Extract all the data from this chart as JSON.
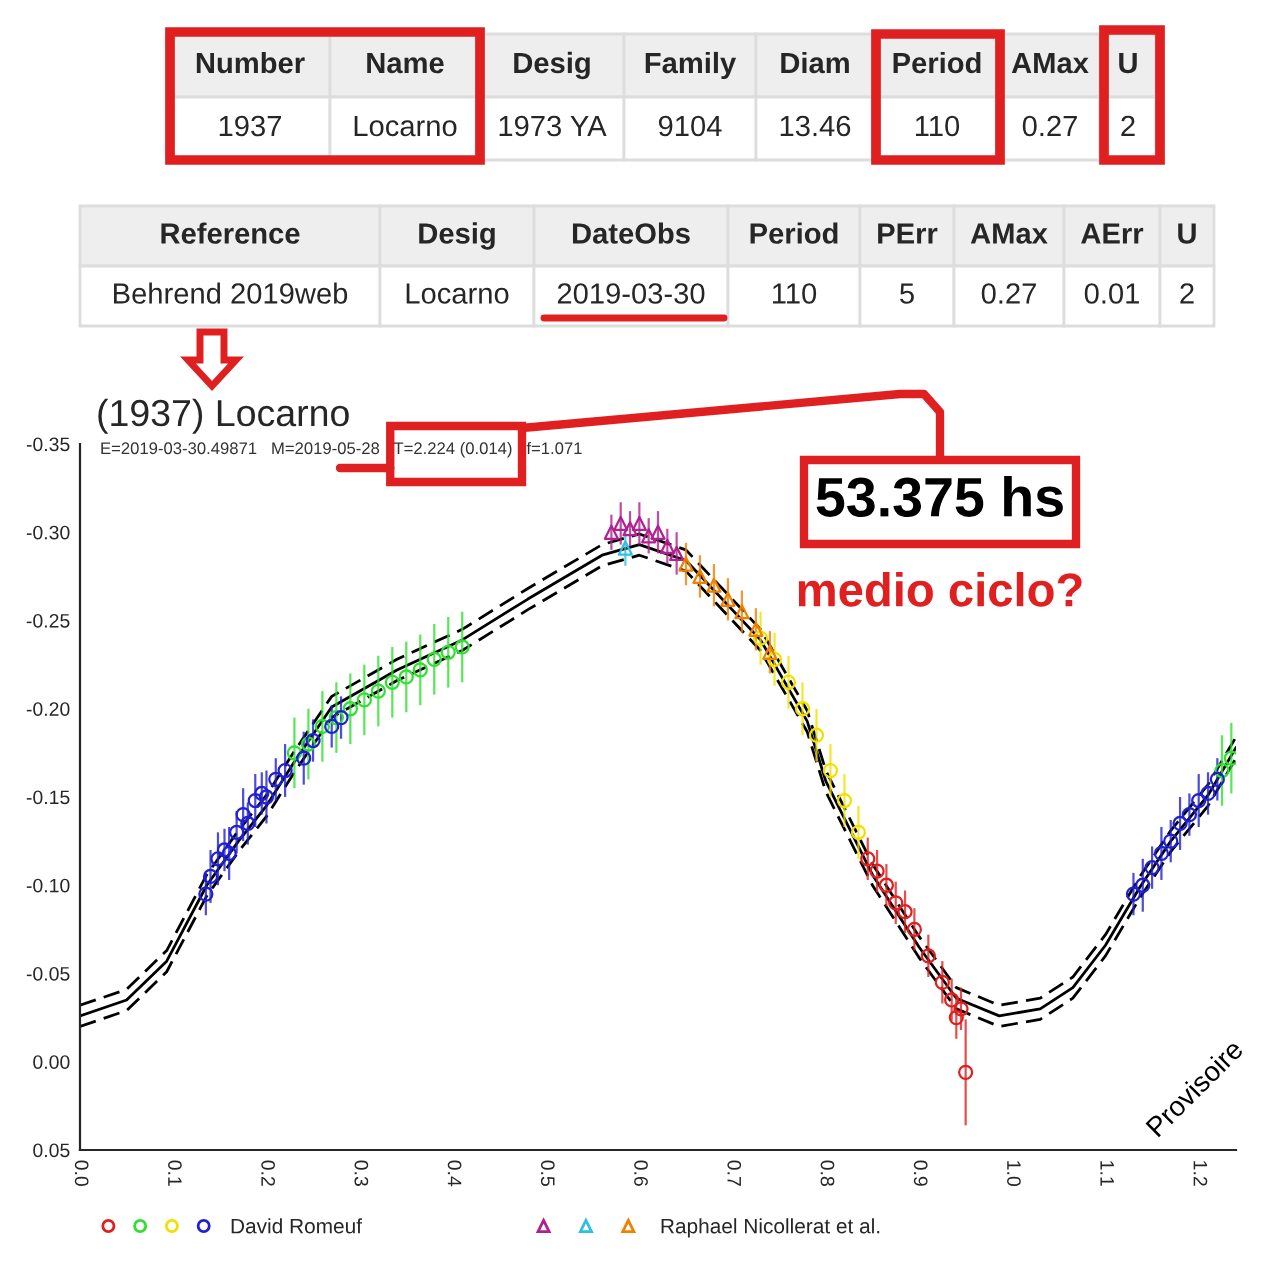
{
  "chart_data": [
    {
      "type": "other",
      "categories": [
        "Number",
        "Name",
        "Desig",
        "Family",
        "Diam",
        "Period",
        "AMax",
        "U"
      ],
      "cell_labels": [
        [
          "1937",
          "Locarno",
          "1973 YA",
          "9104",
          "13.46",
          "110",
          "0.27",
          "2"
        ]
      ]
    },
    {
      "type": "other",
      "categories": [
        "Reference",
        "Desig",
        "DateObs",
        "Period",
        "PErr",
        "AMax",
        "AErr",
        "U"
      ],
      "cell_labels": [
        [
          "Behrend 2019web",
          "Locarno",
          "2019-03-30",
          "110",
          "5",
          "0.27",
          "0.01",
          "2"
        ]
      ]
    },
    {
      "type": "scatter",
      "title": "(1937) Locarno",
      "subtitle": "E=2019-03-30.49871   M=2019-05-28   T=2.224 (0.014)   f=1.071",
      "annotations": [
        "Provisoire",
        "53.375 hs",
        "medio ciclo?"
      ],
      "xlim": [
        0.0,
        1.24
      ],
      "xticks": [
        {
          "value": 0,
          "label": "0.0"
        },
        0.1,
        0.2,
        0.3,
        0.4,
        0.5,
        0.6,
        0.7,
        0.8,
        0.9,
        {
          "value": 1,
          "label": "1.0"
        },
        1.1,
        1.2
      ],
      "ylim": [
        0.05,
        -0.35
      ],
      "yticks": [
        {
          "value": -0.35,
          "label": "-0.35"
        },
        {
          "value": -0.3,
          "label": "-0.30"
        },
        {
          "value": -0.25,
          "label": "-0.25"
        },
        {
          "value": -0.2,
          "label": "-0.20"
        },
        {
          "value": -0.15,
          "label": "-0.15"
        },
        {
          "value": -0.1,
          "label": "-0.10"
        },
        {
          "value": -0.05,
          "label": "-0.05"
        },
        {
          "value": 0,
          "label": "0.00"
        },
        {
          "value": 0.05,
          "label": "0.05"
        }
      ],
      "grid": false,
      "legend": "bottom",
      "series": [
        {
          "type": "line",
          "color": "#000000",
          "line_style": "dashed",
          "marker": "none",
          "x": [
            0.0,
            0.05,
            0.093,
            0.136,
            0.17,
            0.2,
            0.23,
            0.27,
            0.34,
            0.41,
            0.48,
            0.56,
            0.6,
            0.65,
            0.73,
            0.78,
            0.8,
            0.85,
            0.9,
            0.94,
            0.986,
            1.03,
            1.065,
            1.1,
            1.137,
            1.17,
            1.21,
            1.24
          ],
          "values": [
            -0.032,
            -0.041,
            -0.063,
            -0.106,
            -0.131,
            -0.151,
            -0.176,
            -0.207,
            -0.228,
            -0.245,
            -0.268,
            -0.293,
            -0.299,
            -0.29,
            -0.245,
            -0.199,
            -0.165,
            -0.112,
            -0.071,
            -0.042,
            -0.032,
            -0.036,
            -0.048,
            -0.072,
            -0.105,
            -0.131,
            -0.157,
            -0.184
          ]
        },
        {
          "type": "line",
          "color": "#000000",
          "line_style": "solid",
          "marker": "none",
          "x": [
            0.0,
            0.05,
            0.093,
            0.136,
            0.17,
            0.2,
            0.23,
            0.27,
            0.34,
            0.41,
            0.48,
            0.56,
            0.6,
            0.65,
            0.73,
            0.78,
            0.8,
            0.85,
            0.9,
            0.94,
            0.986,
            1.03,
            1.065,
            1.1,
            1.137,
            1.17,
            1.21,
            1.24
          ],
          "values": [
            -0.026,
            -0.035,
            -0.057,
            -0.1,
            -0.125,
            -0.145,
            -0.17,
            -0.201,
            -0.222,
            -0.239,
            -0.262,
            -0.287,
            -0.293,
            -0.284,
            -0.239,
            -0.193,
            -0.159,
            -0.106,
            -0.065,
            -0.036,
            -0.026,
            -0.03,
            -0.042,
            -0.066,
            -0.099,
            -0.125,
            -0.151,
            -0.178
          ]
        },
        {
          "type": "line",
          "color": "#000000",
          "line_style": "dashed",
          "marker": "none",
          "x": [
            0.0,
            0.05,
            0.093,
            0.136,
            0.17,
            0.2,
            0.23,
            0.27,
            0.34,
            0.41,
            0.48,
            0.56,
            0.6,
            0.65,
            0.73,
            0.78,
            0.8,
            0.85,
            0.9,
            0.94,
            0.986,
            1.03,
            1.065,
            1.1,
            1.137,
            1.17,
            1.21,
            1.24
          ],
          "values": [
            -0.02,
            -0.029,
            -0.051,
            -0.094,
            -0.119,
            -0.139,
            -0.164,
            -0.195,
            -0.216,
            -0.233,
            -0.256,
            -0.281,
            -0.287,
            -0.278,
            -0.233,
            -0.187,
            -0.153,
            -0.1,
            -0.059,
            -0.03,
            -0.02,
            -0.024,
            -0.036,
            -0.06,
            -0.093,
            -0.119,
            -0.145,
            -0.172
          ]
        },
        {
          "type": "scatter",
          "name": "David Romeuf",
          "marker": "circle",
          "x": [
            0.845,
            0.855,
            0.865,
            0.875,
            0.885,
            0.895,
            0.91,
            0.925,
            0.935,
            0.94,
            0.945,
            0.95,
            0.23,
            0.245,
            0.26,
            0.275,
            0.29,
            0.305,
            0.32,
            0.335,
            0.35,
            0.365,
            0.38,
            0.395,
            0.41,
            1.225,
            1.235,
            0.73,
            0.745,
            0.76,
            0.775,
            0.79,
            0.805,
            0.82,
            0.835,
            0.135,
            0.14,
            0.148,
            0.155,
            0.16,
            0.168,
            0.175,
            0.18,
            0.188,
            0.195,
            0.2,
            0.21,
            0.22,
            0.24,
            0.25,
            0.27,
            0.28,
            1.13,
            1.14,
            1.15,
            1.16,
            1.17,
            1.18,
            1.19,
            1.2,
            1.21,
            1.22
          ],
          "values": [
            -0.115,
            -0.108,
            -0.1,
            -0.09,
            -0.085,
            -0.075,
            -0.06,
            -0.045,
            -0.035,
            -0.025,
            -0.03,
            0.006,
            -0.175,
            -0.18,
            -0.19,
            -0.195,
            -0.2,
            -0.205,
            -0.21,
            -0.215,
            -0.218,
            -0.222,
            -0.228,
            -0.232,
            -0.235,
            -0.165,
            -0.172,
            -0.24,
            -0.228,
            -0.215,
            -0.2,
            -0.185,
            -0.165,
            -0.148,
            -0.13,
            -0.095,
            -0.105,
            -0.115,
            -0.12,
            -0.118,
            -0.13,
            -0.14,
            -0.135,
            -0.148,
            -0.152,
            -0.15,
            -0.16,
            -0.165,
            -0.172,
            -0.182,
            -0.19,
            -0.195,
            -0.095,
            -0.1,
            -0.11,
            -0.118,
            -0.125,
            -0.135,
            -0.14,
            -0.148,
            -0.152,
            -0.16
          ],
          "errors": [
            0.012,
            0.012,
            0.012,
            0.012,
            0.012,
            0.012,
            0.012,
            0.012,
            0.012,
            0.012,
            0.012,
            0.03,
            0.02,
            0.02,
            0.02,
            0.02,
            0.02,
            0.02,
            0.02,
            0.02,
            0.02,
            0.02,
            0.02,
            0.02,
            0.02,
            0.02,
            0.02,
            0.015,
            0.015,
            0.015,
            0.015,
            0.015,
            0.015,
            0.015,
            0.015,
            0.012,
            0.015,
            0.015,
            0.012,
            0.015,
            0.012,
            0.015,
            0.012,
            0.015,
            0.012,
            0.015,
            0.012,
            0.015,
            0.015,
            0.012,
            0.012,
            0.012,
            0.012,
            0.015,
            0.012,
            0.015,
            0.012,
            0.015,
            0.012,
            0.015,
            0.012,
            0.012
          ],
          "colors": [
            "#e02020",
            "#e02020",
            "#e02020",
            "#e02020",
            "#e02020",
            "#e02020",
            "#e02020",
            "#e02020",
            "#e02020",
            "#e02020",
            "#e02020",
            "#e02020",
            "#30e030",
            "#30e030",
            "#30e030",
            "#30e030",
            "#30e030",
            "#30e030",
            "#30e030",
            "#30e030",
            "#30e030",
            "#30e030",
            "#30e030",
            "#30e030",
            "#30e030",
            "#30e030",
            "#30e030",
            "#f0e000",
            "#f0e000",
            "#f0e000",
            "#f0e000",
            "#f0e000",
            "#f0e000",
            "#f0e000",
            "#f0e000",
            "#2020d0",
            "#2020d0",
            "#2020d0",
            "#2020d0",
            "#2020d0",
            "#2020d0",
            "#2020d0",
            "#2020d0",
            "#2020d0",
            "#2020d0",
            "#2020d0",
            "#2020d0",
            "#2020d0",
            "#2020d0",
            "#2020d0",
            "#2020d0",
            "#2020d0",
            "#2020d0",
            "#2020d0",
            "#2020d0",
            "#2020d0",
            "#2020d0",
            "#2020d0",
            "#2020d0",
            "#2020d0",
            "#2020d0",
            "#2020d0"
          ]
        },
        {
          "type": "scatter",
          "name": "Raphael Nicollerat et al.",
          "marker": "triangle",
          "x": [
            0.57,
            0.58,
            0.59,
            0.6,
            0.61,
            0.62,
            0.63,
            0.64,
            0.585,
            0.65,
            0.665,
            0.68,
            0.695,
            0.71,
            0.725,
            0.74
          ],
          "values": [
            -0.3,
            -0.305,
            -0.302,
            -0.305,
            -0.298,
            -0.3,
            -0.292,
            -0.288,
            -0.291,
            -0.282,
            -0.275,
            -0.27,
            -0.262,
            -0.255,
            -0.245,
            -0.232
          ],
          "errors": [
            0.01,
            0.012,
            0.01,
            0.012,
            0.01,
            0.012,
            0.01,
            0.012,
            0.01,
            0.012,
            0.012,
            0.012,
            0.012,
            0.012,
            0.012,
            0.012
          ],
          "colors": [
            "#b0208f",
            "#b0208f",
            "#b0208f",
            "#b0208f",
            "#b0208f",
            "#b0208f",
            "#b0208f",
            "#b0208f",
            "#30c0e0",
            "#f08000",
            "#f08000",
            "#f08000",
            "#f08000",
            "#f08000",
            "#f08000",
            "#f08000"
          ]
        }
      ]
    }
  ]
}
